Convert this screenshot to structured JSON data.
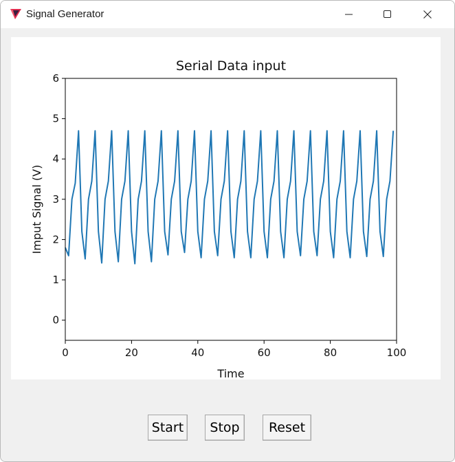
{
  "window": {
    "title": "Signal Generator",
    "icons": {
      "app": "app-logo-icon",
      "minimize": "minimize-icon",
      "maximize": "maximize-icon",
      "close": "close-icon"
    }
  },
  "controls": {
    "start_label": "Start",
    "stop_label": "Stop",
    "reset_label": "Reset"
  },
  "chart_data": {
    "type": "line",
    "title": "Serial Data input",
    "xlabel": "Time",
    "ylabel": "Imput Signal (V)",
    "xlim": [
      0,
      100
    ],
    "ylim": [
      -0.5,
      6
    ],
    "xticks": [
      "0",
      "20",
      "40",
      "60",
      "80",
      "100"
    ],
    "yticks": [
      "0",
      "1",
      "2",
      "3",
      "4",
      "5",
      "6"
    ],
    "grid": false,
    "series": [
      {
        "color": "#1f77b4",
        "x": [
          0,
          1,
          2,
          3,
          4,
          5,
          6,
          7,
          8,
          9,
          10,
          11,
          12,
          13,
          14,
          15,
          16,
          17,
          18,
          19,
          20,
          21,
          22,
          23,
          24,
          25,
          26,
          27,
          28,
          29,
          30,
          31,
          32,
          33,
          34,
          35,
          36,
          37,
          38,
          39,
          40,
          41,
          42,
          43,
          44,
          45,
          46,
          47,
          48,
          49,
          50,
          51,
          52,
          53,
          54,
          55,
          56,
          57,
          58,
          59,
          60,
          61,
          62,
          63,
          64,
          65,
          66,
          67,
          68,
          69,
          70,
          71,
          72,
          73,
          74,
          75,
          76,
          77,
          78,
          79,
          80,
          81,
          82,
          83,
          84,
          85,
          86,
          87,
          88,
          89,
          90,
          91,
          92,
          93,
          94,
          95,
          96,
          97,
          98,
          99
        ],
        "values": [
          1.8,
          1.6,
          3.0,
          3.4,
          4.7,
          2.2,
          1.52,
          3.0,
          3.45,
          4.7,
          2.2,
          1.42,
          3.0,
          3.45,
          4.7,
          2.2,
          1.45,
          3.0,
          3.45,
          4.7,
          2.2,
          1.4,
          3.0,
          3.45,
          4.7,
          2.2,
          1.45,
          3.0,
          3.45,
          4.7,
          2.2,
          1.62,
          3.0,
          3.45,
          4.7,
          2.2,
          1.68,
          3.0,
          3.45,
          4.7,
          2.2,
          1.55,
          3.0,
          3.45,
          4.7,
          2.2,
          1.6,
          3.0,
          3.45,
          4.7,
          2.2,
          1.55,
          3.0,
          3.45,
          4.7,
          2.2,
          1.55,
          3.0,
          3.45,
          4.7,
          2.2,
          1.55,
          3.0,
          3.45,
          4.7,
          2.2,
          1.55,
          3.0,
          3.45,
          4.7,
          2.2,
          1.6,
          3.0,
          3.45,
          4.7,
          2.2,
          1.6,
          3.0,
          3.45,
          4.7,
          2.2,
          1.55,
          3.0,
          3.45,
          4.7,
          2.2,
          1.55,
          3.0,
          3.45,
          4.7,
          2.2,
          1.58,
          3.0,
          3.45,
          4.7,
          2.2,
          1.58,
          3.0,
          3.45,
          4.7
        ]
      }
    ]
  }
}
